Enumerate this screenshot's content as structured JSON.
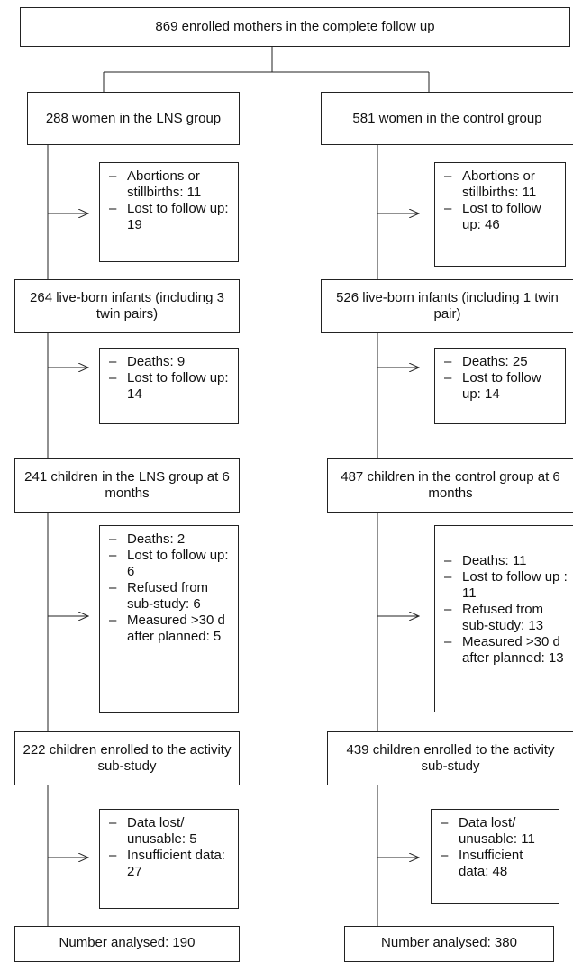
{
  "enrolled": "869 enrolled mothers in the complete follow up",
  "lns": {
    "women": "288 women in the LNS group",
    "excl1": [
      "Abortions or stillbirths: 11",
      "Lost to follow up: 19"
    ],
    "liveborn": "264 live-born infants (including 3 twin pairs)",
    "excl2": [
      "Deaths: 9",
      "Lost to follow up: 14"
    ],
    "six_months": "241 children in the LNS group at 6 months",
    "excl3": [
      "Deaths: 2",
      "Lost to follow up: 6",
      "Refused from sub-study: 6",
      "Measured >30 d after planned: 5"
    ],
    "substudy": "222 children enrolled to the activity sub-study",
    "excl4": [
      "Data lost/ unusable: 5",
      "Insufficient data: 27"
    ],
    "analysed": "Number analysed: 190"
  },
  "control": {
    "women": "581 women in the control group",
    "excl1": [
      "Abortions or stillbirths: 11",
      "Lost to follow up: 46"
    ],
    "liveborn": "526 live-born infants (including 1 twin pair)",
    "excl2": [
      "Deaths: 25",
      "Lost to follow up: 14"
    ],
    "six_months": "487 children in the control group at 6 months",
    "excl3": [
      "Deaths: 11",
      "Lost to follow up : 11",
      "Refused from sub-study: 13",
      "Measured >30 d after planned: 13"
    ],
    "substudy": "439 children enrolled to the activity sub-study",
    "excl4": [
      "Data lost/ unusable: 11",
      "Insufficient data: 48"
    ],
    "analysed": "Number analysed: 380"
  }
}
